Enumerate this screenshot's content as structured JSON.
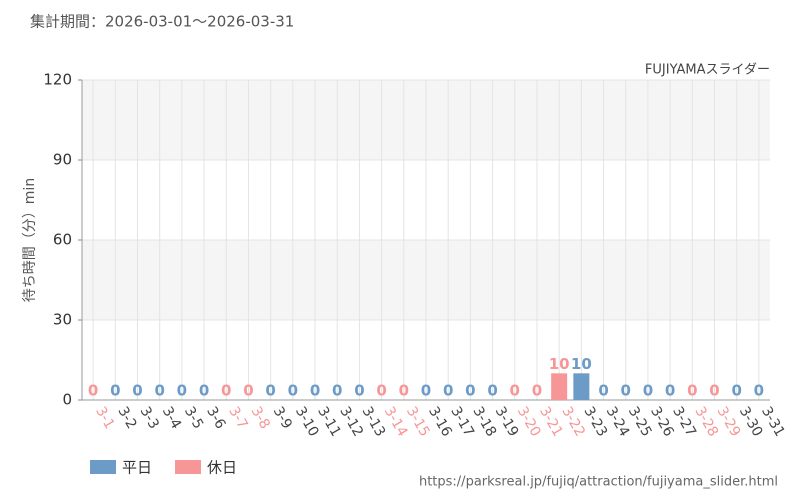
{
  "chart_data": {
    "type": "bar",
    "title": "集計期間：2026-03-01～2026-03-31",
    "subtitle": "FUJIYAMAスライダー",
    "ylabel": "待ち時間（分）min",
    "categories": [
      "3-1",
      "3-2",
      "3-3",
      "3-4",
      "3-5",
      "3-6",
      "3-7",
      "3-8",
      "3-9",
      "3-10",
      "3-11",
      "3-12",
      "3-13",
      "3-14",
      "3-15",
      "3-16",
      "3-17",
      "3-18",
      "3-19",
      "3-20",
      "3-21",
      "3-22",
      "3-23",
      "3-24",
      "3-25",
      "3-26",
      "3-27",
      "3-28",
      "3-29",
      "3-30",
      "3-31"
    ],
    "series": [
      {
        "name": "平日",
        "color": "#6b9bc6",
        "values": [
          null,
          0,
          0,
          0,
          0,
          0,
          null,
          null,
          0,
          0,
          0,
          0,
          0,
          null,
          null,
          0,
          0,
          0,
          0,
          null,
          null,
          null,
          10,
          0,
          0,
          0,
          0,
          null,
          null,
          0,
          0
        ]
      },
      {
        "name": "休日",
        "color": "#f79696",
        "values": [
          0,
          null,
          null,
          null,
          null,
          null,
          0,
          0,
          null,
          null,
          null,
          null,
          null,
          0,
          0,
          null,
          null,
          null,
          null,
          0,
          0,
          10,
          null,
          null,
          null,
          null,
          null,
          0,
          0,
          null,
          null
        ]
      }
    ],
    "ylim": [
      0,
      120
    ],
    "yticks": [
      0,
      30,
      60,
      90,
      120
    ],
    "grid": true,
    "source": "https://parksreal.jp/fujiq/attraction/fujiyama_slider.html"
  }
}
